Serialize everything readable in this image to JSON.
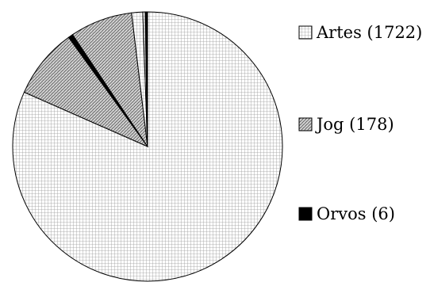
{
  "chart_data": {
    "type": "pie",
    "title": "",
    "slices": [
      {
        "label": "Artes (1722)",
        "value": 1722,
        "pattern": "grid"
      },
      {
        "label": "Jog (178)",
        "value": 178,
        "pattern": "hatch"
      },
      {
        "label": "",
        "value": 12,
        "pattern": "solid"
      },
      {
        "label": "",
        "value": 158,
        "pattern": "hatch"
      },
      {
        "label": "",
        "value": 28,
        "pattern": "grid"
      },
      {
        "label": "",
        "value": 6,
        "pattern": "grid"
      },
      {
        "label": "Orvos (6)",
        "value": 6,
        "pattern": "solid"
      }
    ],
    "start_angle_deg": 90,
    "direction": "clockwise",
    "legend": {
      "placement": "right",
      "entries": [
        {
          "label": "Artes (1722)",
          "pattern": "grid"
        },
        {
          "label": "Jog (178)",
          "pattern": "hatch"
        },
        {
          "label": "Orvos (6)",
          "pattern": "solid"
        }
      ]
    },
    "colors": {
      "stroke": "#000000",
      "background": "#ffffff",
      "solid": "#000000"
    }
  }
}
